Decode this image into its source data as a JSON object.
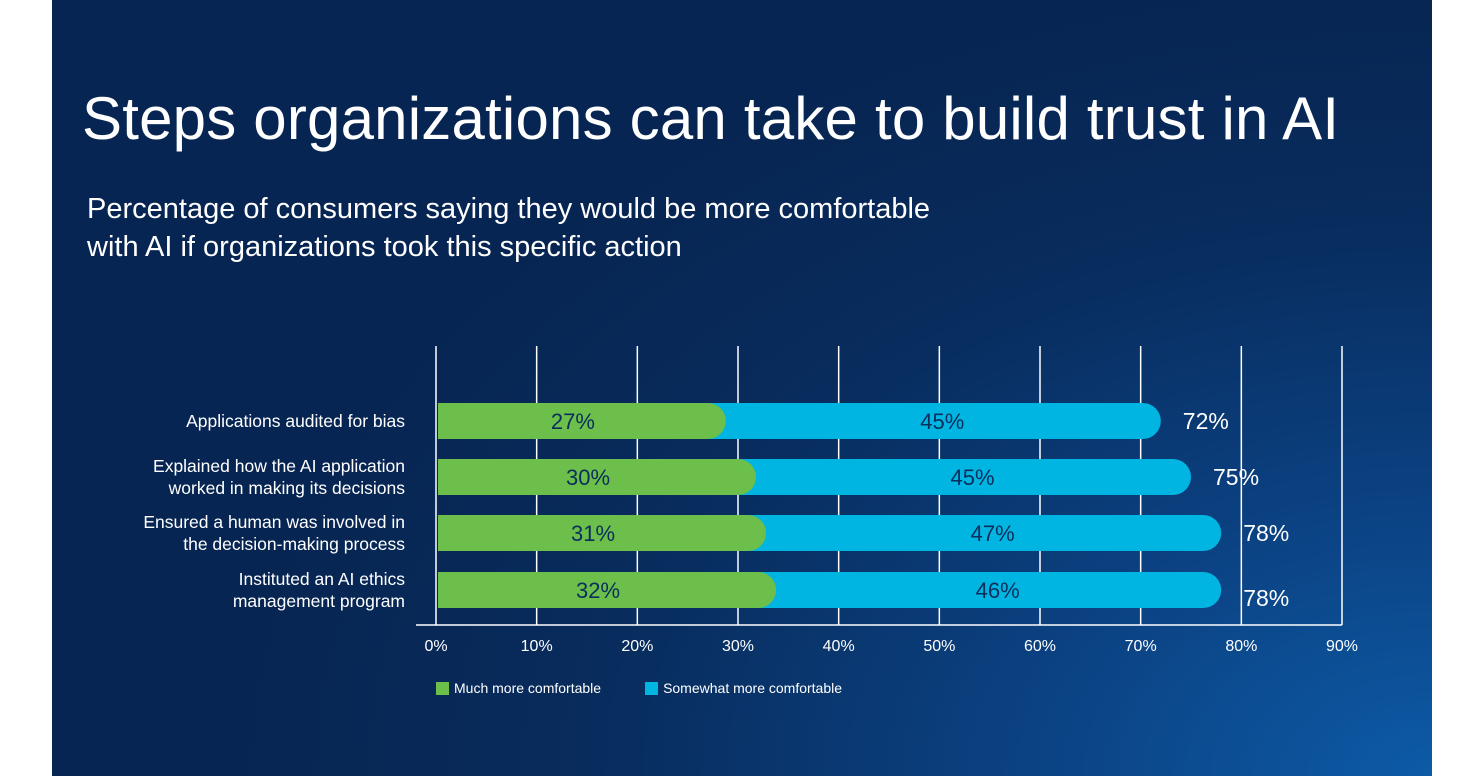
{
  "title": "Steps organizations can take to build trust in AI",
  "subtitle_lines": [
    "Percentage of consumers saying they would be more comfortable",
    "with AI if organizations took this specific action"
  ],
  "colors": {
    "much": "#6cbf4a",
    "somewhat": "#00b5e2",
    "grid": "#ffffff",
    "text": "#ffffff",
    "segment_text": "#0b2e5c"
  },
  "chart_data": {
    "type": "bar",
    "orientation": "horizontal",
    "stacked": true,
    "categories": [
      [
        "Applications audited for bias"
      ],
      [
        "Explained how the AI application",
        "worked in making its decisions"
      ],
      [
        "Ensured a human was involved in",
        "the decision-making process"
      ],
      [
        "Instituted an AI ethics",
        "management program"
      ]
    ],
    "series": [
      {
        "name": "Much more comfortable",
        "values": [
          27,
          30,
          31,
          32
        ],
        "labels": [
          "27%",
          "30%",
          "31%",
          "32%"
        ]
      },
      {
        "name": "Somewhat more comfortable",
        "values": [
          45,
          45,
          47,
          46
        ],
        "labels": [
          "45%",
          "45%",
          "47%",
          "46%"
        ]
      }
    ],
    "totals": [
      "72%",
      "75%",
      "78%",
      "78%"
    ],
    "xlim": [
      0,
      90
    ],
    "xticks": [
      "0%",
      "10%",
      "20%",
      "30%",
      "40%",
      "50%",
      "60%",
      "70%",
      "80%",
      "90%"
    ],
    "grid": true,
    "legend_position": "bottom-left"
  }
}
